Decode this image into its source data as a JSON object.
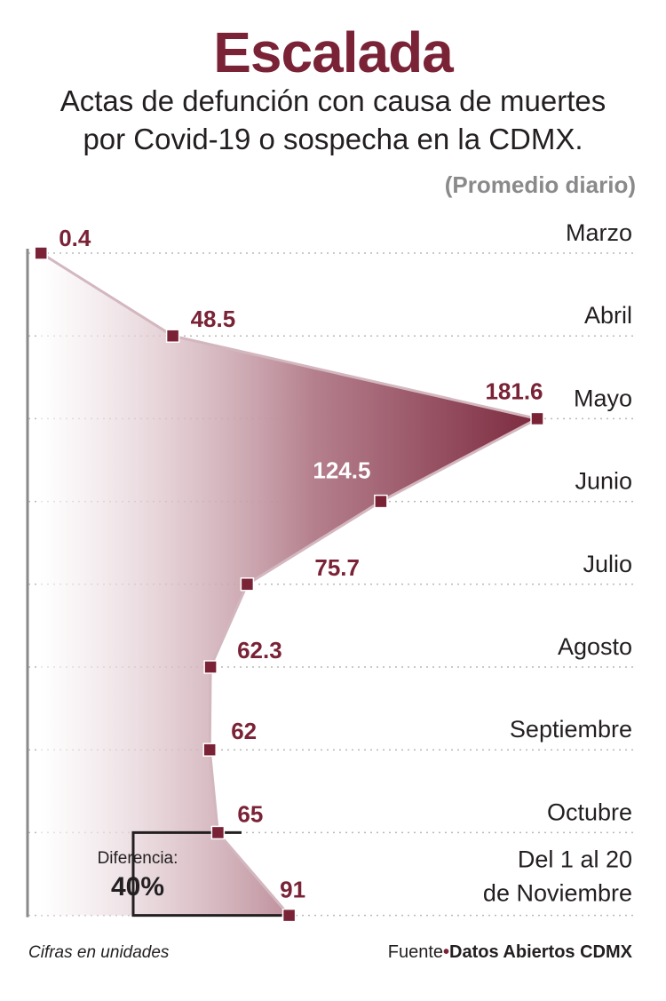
{
  "header": {
    "title": "Escalada",
    "subtitle_line1": "Actas de defunción con causa de muertes",
    "subtitle_line2": "por Covid-19 o sospecha en la CDMX.",
    "unit": "(Promedio diario)"
  },
  "chart_data": {
    "type": "area",
    "orientation": "horizontal",
    "categories": [
      "Marzo",
      "Abril",
      "Mayo",
      "Junio",
      "Julio",
      "Agosto",
      "Septiembre",
      "Octubre",
      [
        "Del 1 al 20",
        "de Noviembre"
      ]
    ],
    "values": [
      0.4,
      48.5,
      181.6,
      124.5,
      75.7,
      62.3,
      62,
      65,
      91
    ],
    "value_labels": [
      "0.4",
      "48.5",
      "181.6",
      "124.5",
      "75.7",
      "62.3",
      "62",
      "65",
      "91"
    ],
    "xlim": [
      0,
      181.6
    ],
    "grid": true,
    "annotation": {
      "label": "Diferencia:",
      "value": "40%"
    },
    "colors": {
      "accent": "#7a2236",
      "label_on_fill": "#ffffff",
      "grid": "#b9b9bb",
      "axis": "#8a8a8c"
    }
  },
  "footer": {
    "note": "Cifras en unidades",
    "source_prefix": "Fuente",
    "source_name": "Datos Abiertos CDMX"
  }
}
